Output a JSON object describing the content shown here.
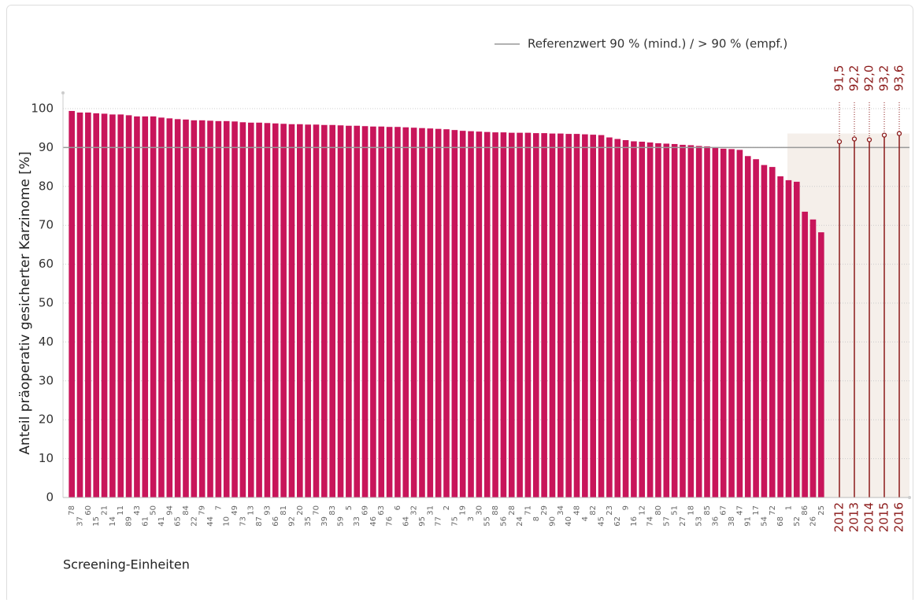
{
  "chart_data": {
    "type": "bar",
    "y_label": "Anteil präoperativ gesicherter Karzinome [%]",
    "x_label": "Screening-Einheiten",
    "reference_label": "Referenzwert  90 % (mind.) / > 90 % (empf.)",
    "reference_value": 90,
    "color": "#c8155a",
    "year_color": "#8b1a1a",
    "ylim": [
      0,
      100
    ],
    "yticks": [
      0,
      10,
      20,
      30,
      40,
      50,
      60,
      70,
      80,
      90,
      100
    ],
    "grid": true,
    "categories": [
      "78",
      "37",
      "60",
      "15",
      "21",
      "14",
      "11",
      "89",
      "43",
      "61",
      "50",
      "41",
      "94",
      "65",
      "84",
      "22",
      "79",
      "44",
      "7",
      "10",
      "49",
      "73",
      "13",
      "87",
      "93",
      "66",
      "81",
      "92",
      "20",
      "35",
      "70",
      "39",
      "83",
      "59",
      "5",
      "33",
      "69",
      "46",
      "63",
      "76",
      "6",
      "64",
      "32",
      "95",
      "31",
      "77",
      "2",
      "75",
      "19",
      "3",
      "30",
      "55",
      "88",
      "56",
      "28",
      "24",
      "71",
      "8",
      "29",
      "90",
      "34",
      "40",
      "48",
      "4",
      "82",
      "45",
      "23",
      "62",
      "9",
      "16",
      "12",
      "74",
      "80",
      "57",
      "51",
      "27",
      "18",
      "53",
      "85",
      "36",
      "67",
      "38",
      "47",
      "91",
      "17",
      "54",
      "72",
      "68",
      "1",
      "52",
      "86",
      "26",
      "25"
    ],
    "values": [
      99.4,
      99.0,
      99.0,
      98.8,
      98.7,
      98.5,
      98.5,
      98.3,
      98.0,
      98.0,
      98.0,
      97.7,
      97.5,
      97.3,
      97.2,
      97.0,
      97.0,
      96.9,
      96.8,
      96.8,
      96.7,
      96.5,
      96.4,
      96.4,
      96.3,
      96.2,
      96.1,
      96.0,
      96.0,
      95.9,
      95.9,
      95.8,
      95.8,
      95.7,
      95.6,
      95.6,
      95.5,
      95.4,
      95.4,
      95.3,
      95.3,
      95.2,
      95.1,
      95.0,
      94.9,
      94.8,
      94.7,
      94.5,
      94.3,
      94.2,
      94.1,
      94.0,
      93.9,
      93.9,
      93.8,
      93.8,
      93.8,
      93.7,
      93.7,
      93.6,
      93.6,
      93.5,
      93.5,
      93.4,
      93.3,
      93.2,
      92.6,
      92.2,
      91.9,
      91.6,
      91.5,
      91.3,
      91.1,
      91.0,
      90.9,
      90.7,
      90.6,
      90.4,
      90.3,
      90.0,
      89.7,
      89.6,
      89.4,
      87.8,
      87.0,
      85.5,
      85.0,
      82.6,
      81.6,
      81.2,
      73.5,
      71.5,
      68.2
    ],
    "years": [
      "2012",
      "2013",
      "2014",
      "2015",
      "2016"
    ],
    "year_values": [
      91.5,
      92.2,
      92.0,
      93.2,
      93.6
    ],
    "year_value_labels": [
      "91,5",
      "92,2",
      "92,0",
      "93,2",
      "93,6"
    ]
  }
}
